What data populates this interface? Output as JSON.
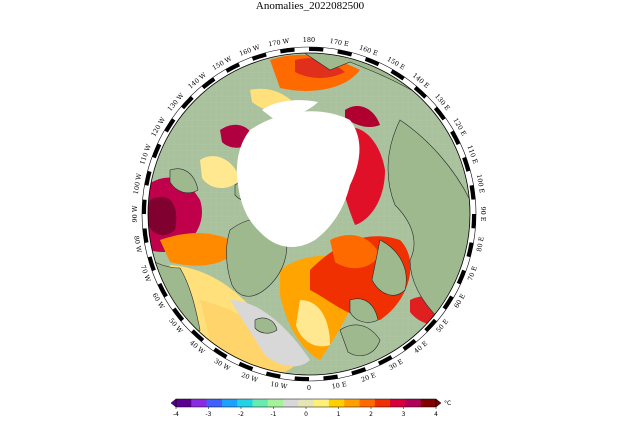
{
  "map": {
    "title": "Anomalies_2022082500",
    "projection": "north-polar-stereographic",
    "land_color": "#9fb98f",
    "sea_ice_color": "#ffffff",
    "ocean_background_color": "#a9c19d",
    "longitude_labels": [
      "180",
      "170 E",
      "160 E",
      "150 E",
      "140 E",
      "130 E",
      "120 E",
      "110 E",
      "100 E",
      "90 E",
      "80 E",
      "70 E",
      "60 E",
      "50 E",
      "40 E",
      "30 E",
      "20 E",
      "10 E",
      "0",
      "10 W",
      "20 W",
      "30 W",
      "40 W",
      "50 W",
      "60 W",
      "70 W",
      "80 W",
      "90 W",
      "100 W",
      "110 W",
      "120 W",
      "130 W",
      "140 W",
      "150 W",
      "160 W",
      "170 W"
    ]
  },
  "colorbar": {
    "unit": "°C",
    "min": -4,
    "max": 4,
    "tick_labels": [
      "-4",
      "-3",
      "-2",
      "-1",
      "0",
      "1",
      "2",
      "3",
      "4"
    ],
    "colors": [
      "#5b0090",
      "#8a2be2",
      "#3f5fff",
      "#1ea0ff",
      "#22d3e6",
      "#66ecb0",
      "#a6f29a",
      "#d8d8d8",
      "#e6e6b4",
      "#fff07a",
      "#ffd000",
      "#ffa000",
      "#ff6a00",
      "#f03000",
      "#d8003c",
      "#b0005a",
      "#800000"
    ]
  }
}
